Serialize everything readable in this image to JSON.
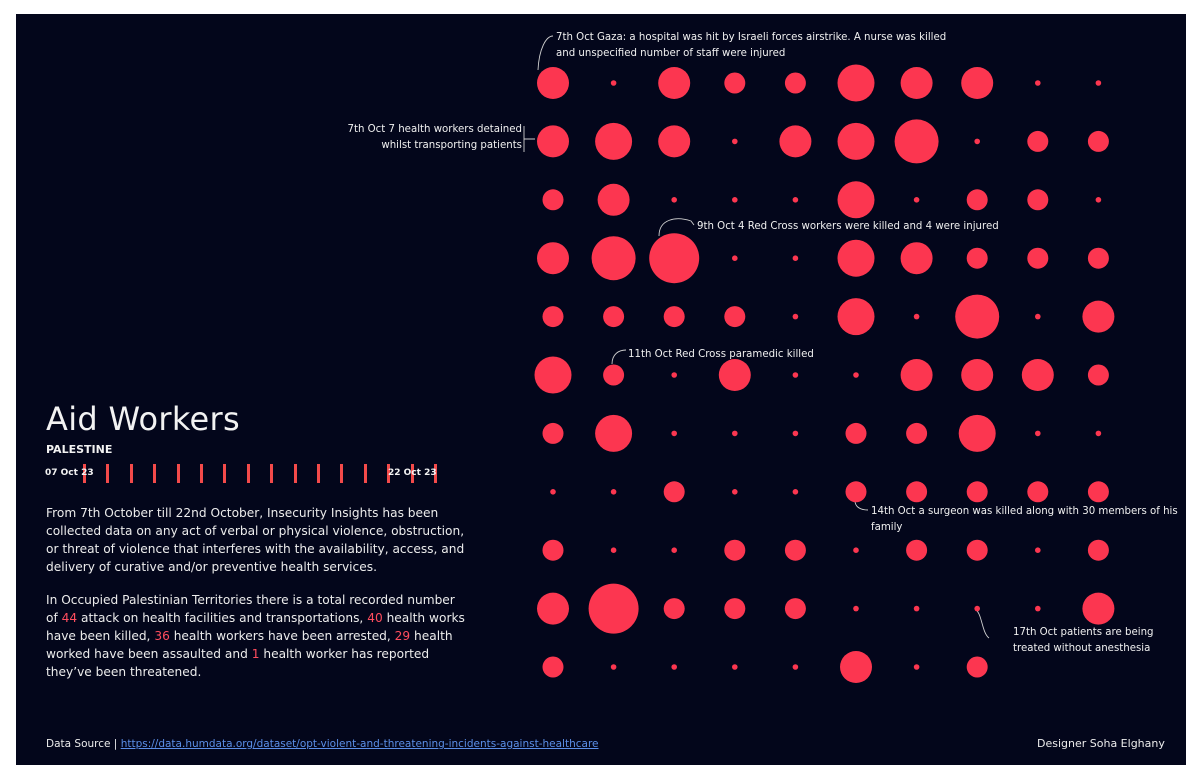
{
  "title": "Aid Workers",
  "subtitle": "PALESTINE",
  "timeline": {
    "start_label": "07 Oct 23",
    "end_label": "22 Oct 23",
    "tick_count": 16
  },
  "description": {
    "paragraph1": "From 7th October till 22nd October, Insecurity Insights has been collected data on any act of verbal or physical violence, obstruction, or threat of violence that interferes with the availability, access, and delivery of curative and/or preventive health services.",
    "p2_a": "In Occupied Palestinian Territories there is a total recorded number of ",
    "n1": "44",
    "p2_b": " attack on health facilities and transportations, ",
    "n2": "40",
    "p2_c": " health works have been killed, ",
    "n3": "36",
    "p2_d": " health workers have been arrested, ",
    "n4": "29",
    "p2_e": " health worked have been assaulted and ",
    "n5": "1",
    "p2_f": " health worker has reported they’ve been threatened."
  },
  "footer": {
    "source_prefix": "Data Source | ",
    "source_url": "https://data.humdata.org/dataset/opt-violent-and-threatening-incidents-against-healthcare",
    "designer": "Designer Soha Elghany"
  },
  "annotations": {
    "a1_line1": "7th Oct Gaza: a hospital was hit by Israeli forces airstrike. A nurse was killed",
    "a1_line2": "and unspecified number of staff were injured",
    "a2_line1": "7th Oct 7 health workers detained",
    "a2_line2": "whilst transporting patients",
    "a3": "9th Oct 4 Red Cross workers were killed and 4 were injured",
    "a4": "11th Oct Red Cross paramedic killed",
    "a5_line1": "14th Oct a surgeon was killed along with 30 members of his",
    "a5_line2": "family",
    "a6_line1": "17th Oct patients are being",
    "a6_line2": "treated without anesthesia"
  },
  "colors": {
    "background": "#03061b",
    "dot": "#fc3650",
    "accent": "#f34a4a",
    "text": "#f2f2f2",
    "link": "#5b8fe8"
  },
  "chart_data": {
    "type": "scatter",
    "description_encoding": "dot grid; each dot size represents relative incident magnitude",
    "columns": 10,
    "rows": 11,
    "values": [
      [
        3,
        1,
        3,
        2,
        2,
        4,
        3,
        3,
        1,
        1
      ],
      [
        3,
        4,
        3,
        1,
        3,
        4,
        5,
        1,
        2,
        2
      ],
      [
        2,
        3,
        1,
        1,
        1,
        4,
        1,
        2,
        2,
        1
      ],
      [
        3,
        5,
        6,
        1,
        1,
        4,
        3,
        2,
        2,
        2
      ],
      [
        2,
        2,
        2,
        2,
        1,
        4,
        1,
        5,
        1,
        3
      ],
      [
        4,
        2,
        1,
        3,
        1,
        1,
        3,
        3,
        3,
        2
      ],
      [
        2,
        4,
        1,
        1,
        1,
        2,
        2,
        4,
        1,
        1
      ],
      [
        1,
        1,
        2,
        1,
        1,
        2,
        2,
        2,
        2,
        2
      ],
      [
        2,
        1,
        1,
        2,
        2,
        1,
        2,
        2,
        1,
        2
      ],
      [
        3,
        6,
        2,
        2,
        2,
        1,
        1,
        1,
        1,
        3
      ],
      [
        2,
        1,
        1,
        1,
        1,
        3,
        1,
        2,
        null,
        null
      ]
    ]
  }
}
